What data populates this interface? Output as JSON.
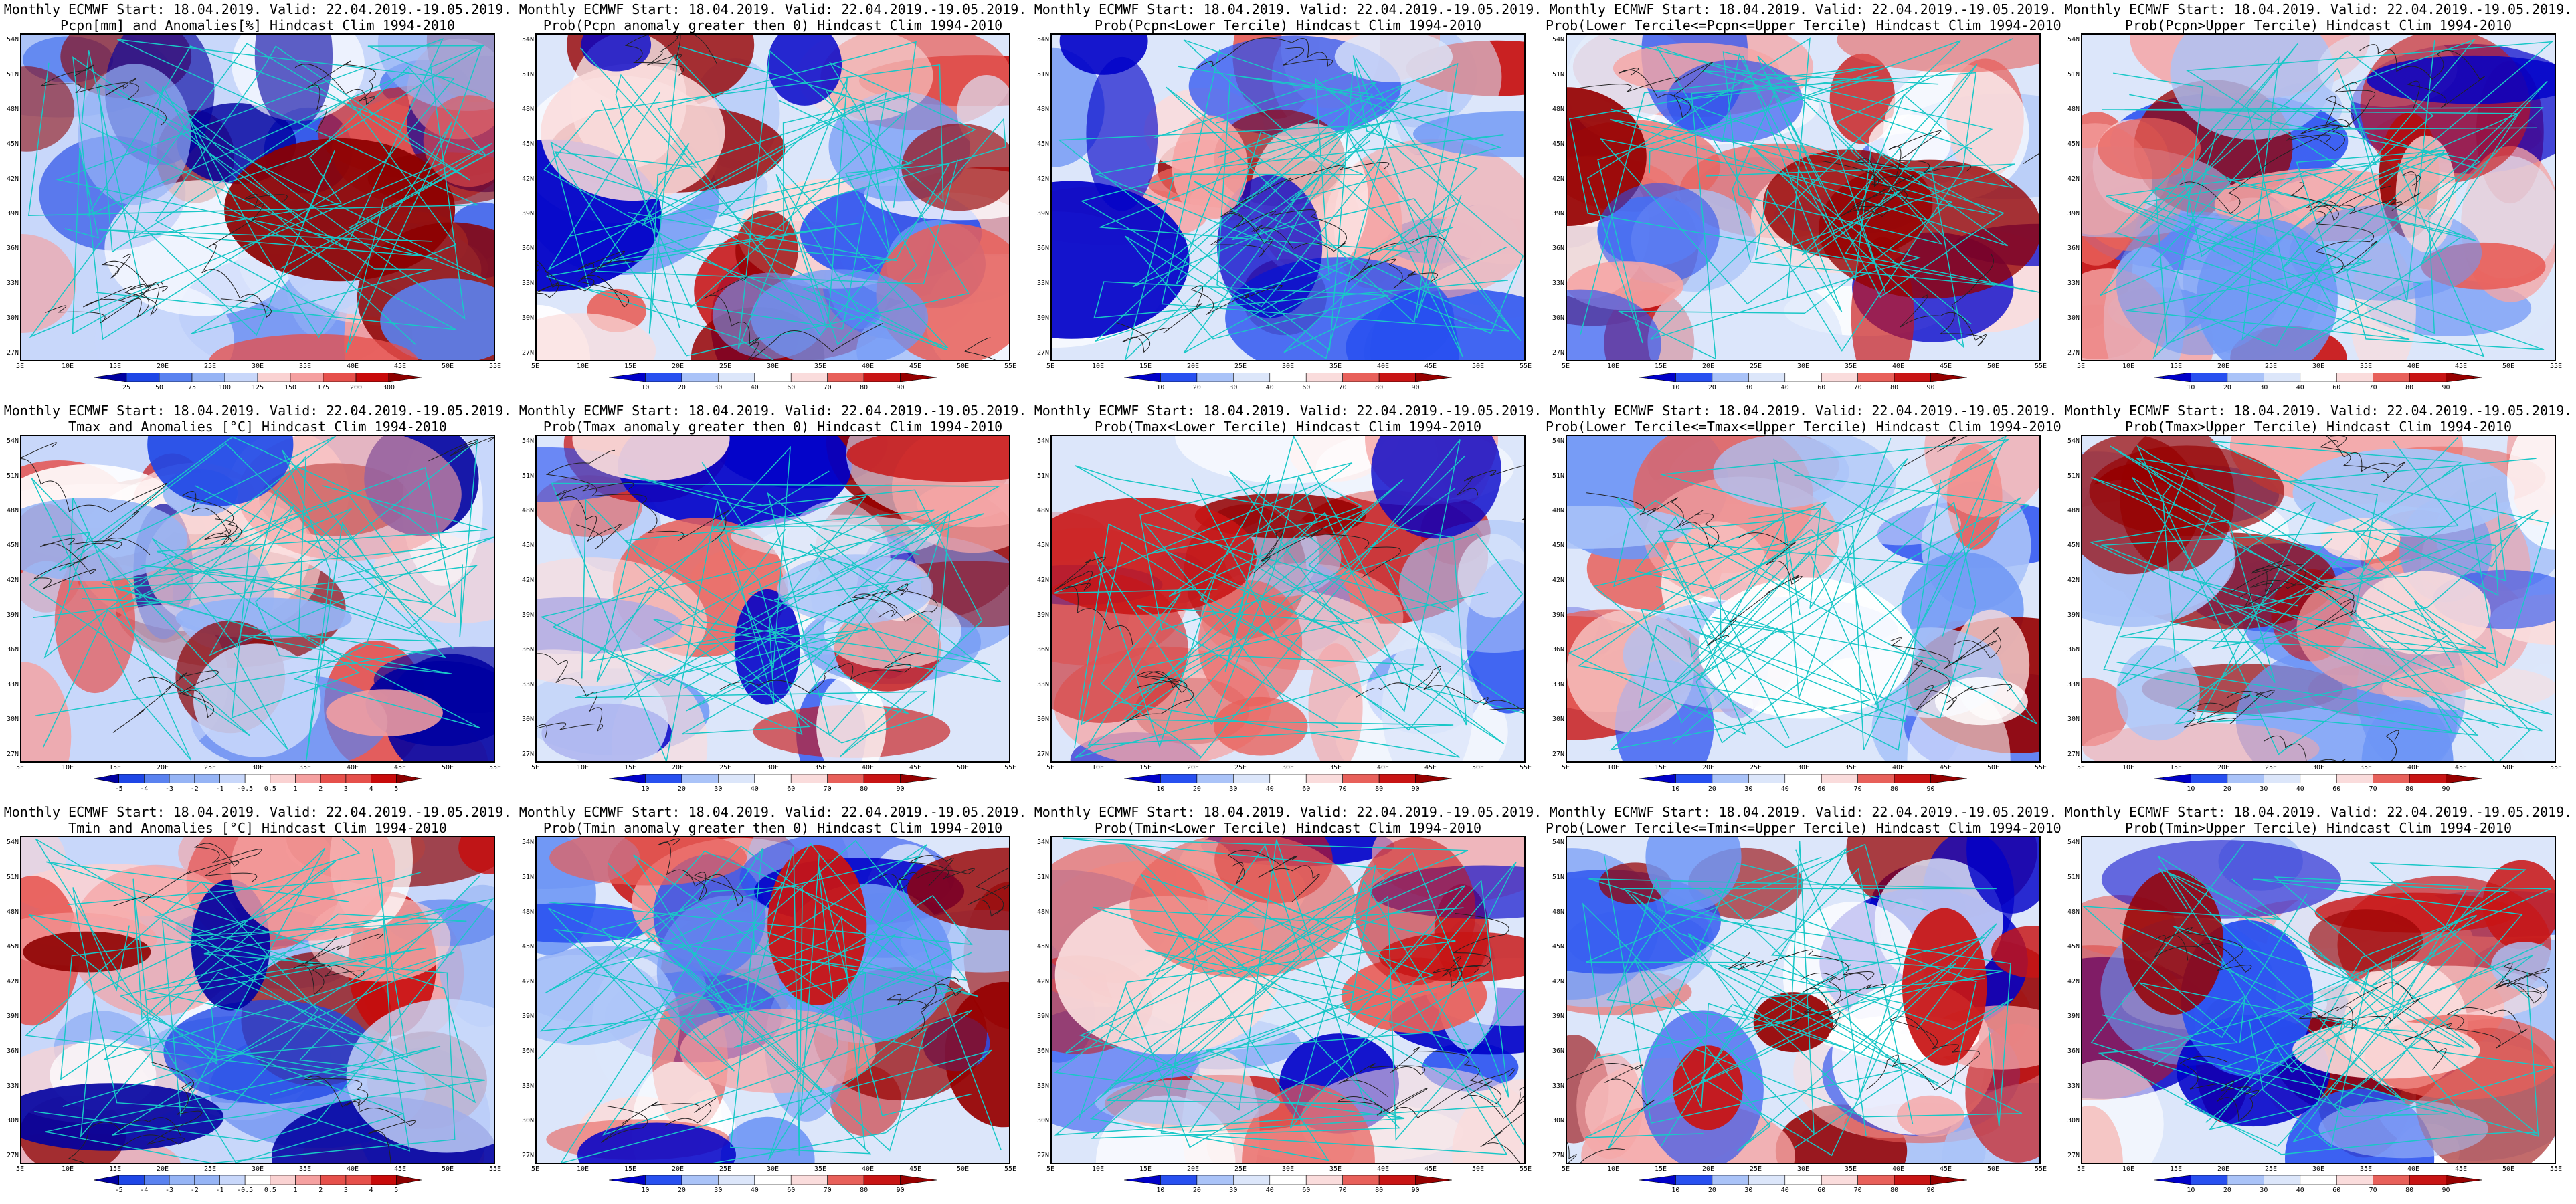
{
  "colors": {
    "coast": "#19c7c7",
    "contour": "#222222",
    "palette_prob": [
      "#0000c8",
      "#2850f0",
      "#6e96f5",
      "#aac3f8",
      "#dce6fa",
      "#ffffff",
      "#fadcdc",
      "#f5a5a5",
      "#e8605a",
      "#c81414",
      "#960000"
    ],
    "palette_anom": [
      "#0000a0",
      "#1e46e6",
      "#5a82f0",
      "#96b4f5",
      "#c8d7fa",
      "#ffffff",
      "#fad2d2",
      "#f5a0a0",
      "#e6504b",
      "#c80a0a",
      "#8c0000"
    ]
  },
  "map": {
    "lat_labels": [
      "54N",
      "51N",
      "48N",
      "45N",
      "42N",
      "39N",
      "36N",
      "33N",
      "30N",
      "27N"
    ],
    "lon_labels": [
      "5E",
      "10E",
      "15E",
      "20E",
      "25E",
      "30E",
      "35E",
      "40E",
      "45E",
      "50E",
      "55E"
    ]
  },
  "panels": [
    {
      "title1": "Monthly ECMWF Start: 18.04.2019. Valid: 22.04.2019.-19.05.2019.",
      "title2": "Pcpn[mm] and Anomalies[%] Hindcast Clim 1994-2010",
      "bar": [
        "25",
        "50",
        "75",
        "100",
        "125",
        "150",
        "175",
        "200",
        "300"
      ],
      "kind": "anom"
    },
    {
      "title1": "Monthly ECMWF Start: 18.04.2019. Valid: 22.04.2019.-19.05.2019.",
      "title2": "Prob(Pcpn anomaly greater then 0) Hindcast Clim 1994-2010",
      "bar": [
        "10",
        "20",
        "30",
        "40",
        "60",
        "70",
        "80",
        "90"
      ],
      "kind": "prob"
    },
    {
      "title1": "Monthly ECMWF Start: 18.04.2019. Valid: 22.04.2019.-19.05.2019.",
      "title2": "Prob(Pcpn<Lower Tercile) Hindcast Clim 1994-2010",
      "bar": [
        "10",
        "20",
        "30",
        "40",
        "60",
        "70",
        "80",
        "90"
      ],
      "kind": "prob"
    },
    {
      "title1": "Monthly ECMWF Start: 18.04.2019. Valid: 22.04.2019.-19.05.2019.",
      "title2": "Prob(Lower Tercile<=Pcpn<=Upper Tercile) Hindcast Clim 1994-2010",
      "bar": [
        "10",
        "20",
        "30",
        "40",
        "60",
        "70",
        "80",
        "90"
      ],
      "kind": "prob"
    },
    {
      "title1": "Monthly ECMWF Start: 18.04.2019. Valid: 22.04.2019.-19.05.2019.",
      "title2": "Prob(Pcpn>Upper Tercile) Hindcast Clim 1994-2010",
      "bar": [
        "10",
        "20",
        "30",
        "40",
        "60",
        "70",
        "80",
        "90"
      ],
      "kind": "prob"
    },
    {
      "title1": "Monthly ECMWF Start: 18.04.2019. Valid: 22.04.2019.-19.05.2019.",
      "title2": "Tmax and Anomalies [°C] Hindcast Clim 1994-2010",
      "bar": [
        "-5",
        "-4",
        "-3",
        "-2",
        "-1",
        "-0.5",
        "0.5",
        "1",
        "2",
        "3",
        "4",
        "5"
      ],
      "kind": "anom"
    },
    {
      "title1": "Monthly ECMWF Start: 18.04.2019. Valid: 22.04.2019.-19.05.2019.",
      "title2": "Prob(Tmax anomaly greater then 0) Hindcast Clim 1994-2010",
      "bar": [
        "10",
        "20",
        "30",
        "40",
        "60",
        "70",
        "80",
        "90"
      ],
      "kind": "prob"
    },
    {
      "title1": "Monthly ECMWF Start: 18.04.2019. Valid: 22.04.2019.-19.05.2019.",
      "title2": "Prob(Tmax<Lower Tercile) Hindcast Clim 1994-2010",
      "bar": [
        "10",
        "20",
        "30",
        "40",
        "60",
        "70",
        "80",
        "90"
      ],
      "kind": "prob"
    },
    {
      "title1": "Monthly ECMWF Start: 18.04.2019. Valid: 22.04.2019.-19.05.2019.",
      "title2": "Prob(Lower Tercile<=Tmax<=Upper Tercile) Hindcast Clim 1994-2010",
      "bar": [
        "10",
        "20",
        "30",
        "40",
        "60",
        "70",
        "80",
        "90"
      ],
      "kind": "prob"
    },
    {
      "title1": "Monthly ECMWF Start: 18.04.2019. Valid: 22.04.2019.-19.05.2019.",
      "title2": "Prob(Tmax>Upper Tercile) Hindcast Clim 1994-2010",
      "bar": [
        "10",
        "20",
        "30",
        "40",
        "60",
        "70",
        "80",
        "90"
      ],
      "kind": "prob"
    },
    {
      "title1": "Monthly ECMWF Start: 18.04.2019. Valid: 22.04.2019.-19.05.2019.",
      "title2": "Tmin and Anomalies [°C] Hindcast Clim 1994-2010",
      "bar": [
        "-5",
        "-4",
        "-3",
        "-2",
        "-1",
        "-0.5",
        "0.5",
        "1",
        "2",
        "3",
        "4",
        "5"
      ],
      "kind": "anom"
    },
    {
      "title1": "Monthly ECMWF Start: 18.04.2019. Valid: 22.04.2019.-19.05.2019.",
      "title2": "Prob(Tmin anomaly greater then 0) Hindcast Clim 1994-2010",
      "bar": [
        "10",
        "20",
        "30",
        "40",
        "60",
        "70",
        "80",
        "90"
      ],
      "kind": "prob"
    },
    {
      "title1": "Monthly ECMWF Start: 18.04.2019. Valid: 22.04.2019.-19.05.2019.",
      "title2": "Prob(Tmin<Lower Tercile) Hindcast Clim 1994-2010",
      "bar": [
        "10",
        "20",
        "30",
        "40",
        "60",
        "70",
        "80",
        "90"
      ],
      "kind": "prob"
    },
    {
      "title1": "Monthly ECMWF Start: 18.04.2019. Valid: 22.04.2019.-19.05.2019.",
      "title2": "Prob(Lower Tercile<=Tmin<=Upper Tercile) Hindcast Clim 1994-2010",
      "bar": [
        "10",
        "20",
        "30",
        "40",
        "60",
        "70",
        "80",
        "90"
      ],
      "kind": "prob"
    },
    {
      "title1": "Monthly ECMWF Start: 18.04.2019. Valid: 22.04.2019.-19.05.2019.",
      "title2": "Prob(Tmin>Upper Tercile) Hindcast Clim 1994-2010",
      "bar": [
        "10",
        "20",
        "30",
        "40",
        "60",
        "70",
        "80",
        "90"
      ],
      "kind": "prob"
    }
  ]
}
